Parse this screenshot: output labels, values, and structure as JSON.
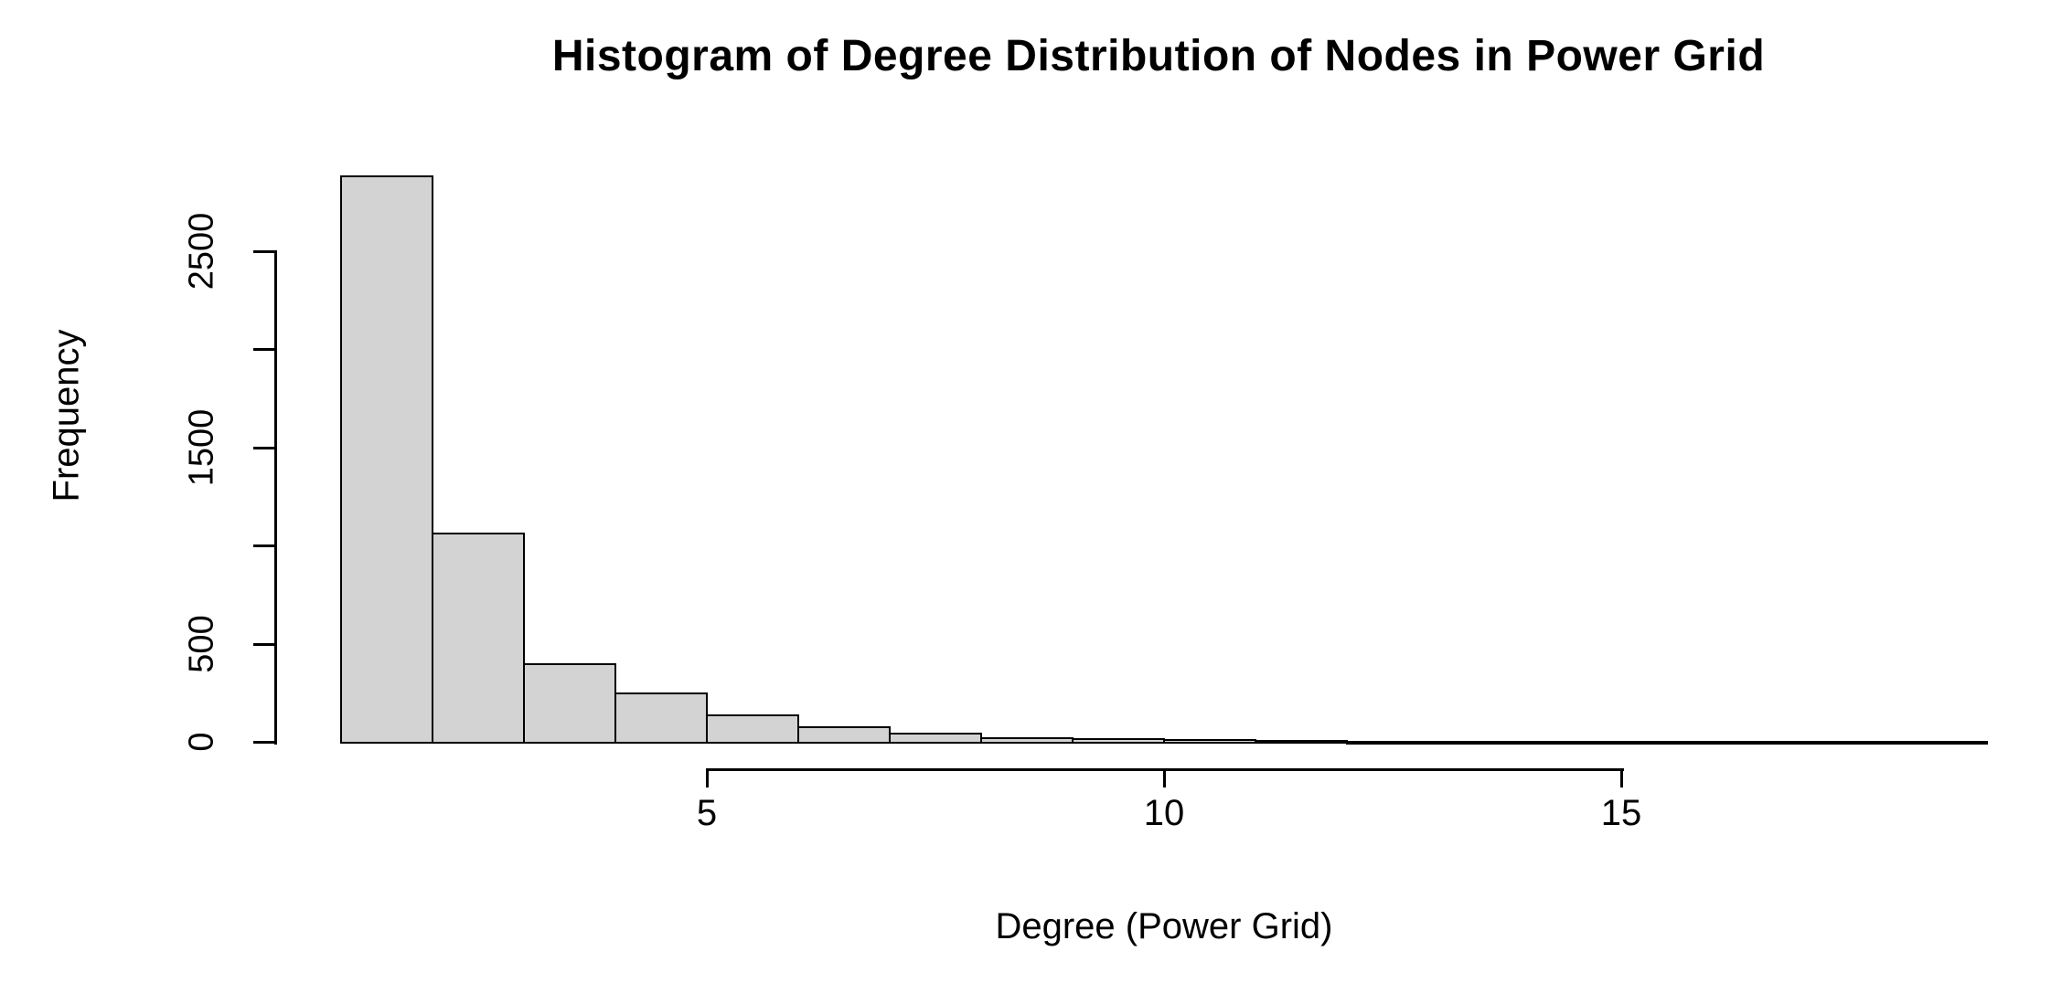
{
  "chart_data": {
    "type": "bar",
    "subtype": "histogram",
    "title": "Histogram of Degree Distribution of Nodes in Power Grid",
    "xlabel": "Degree (Power Grid)",
    "ylabel": "Frequency",
    "bin_start": 1,
    "bin_width": 1,
    "counts": [
      2880,
      1060,
      395,
      245,
      135,
      75,
      42,
      18,
      16,
      8,
      3,
      2,
      1,
      1,
      1,
      1,
      0,
      1
    ],
    "xlim": [
      1,
      19
    ],
    "ylim": [
      0,
      2500
    ],
    "x_ticks": [
      {
        "value": 5,
        "label": "5"
      },
      {
        "value": 10,
        "label": "10"
      },
      {
        "value": 15,
        "label": "15"
      }
    ],
    "y_ticks": [
      {
        "value": 0,
        "label": "0"
      },
      {
        "value": 500,
        "label": "500"
      },
      {
        "value": 1000,
        "label": ""
      },
      {
        "value": 1500,
        "label": "1500"
      },
      {
        "value": 2000,
        "label": ""
      },
      {
        "value": 2500,
        "label": "2500"
      }
    ],
    "grid": "off",
    "legend": "none",
    "bar_fill": "#d3d3d3",
    "bar_border": "#000000",
    "text_color": "#000000",
    "background": "#ffffff"
  }
}
